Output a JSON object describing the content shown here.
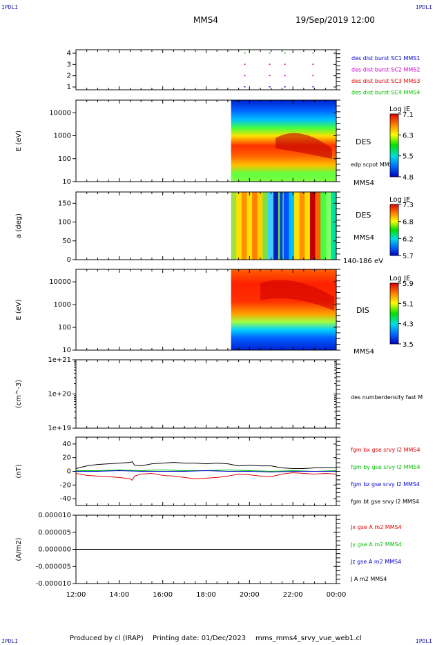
{
  "corners": {
    "tl": "IPDLI",
    "tr": "IPDLI",
    "bl": "IPDLI",
    "br": "IPDLI"
  },
  "header": {
    "spacecraft": "MMS4",
    "datetime": "19/Sep/2019 12:00"
  },
  "footer": {
    "produced": "Produced by cl (IRAP)",
    "printing": "Printing date: 01/Dec/2023",
    "file": "mms_mms4_srvy_vue_web1.cl"
  },
  "colors": {
    "red": "#e00000",
    "green": "#00c000",
    "blue": "#0000d0",
    "magenta": "#d000d0",
    "black": "#000000"
  },
  "chart_data": [
    {
      "type": "scatter",
      "title": "burst availability",
      "yticks": [
        "1",
        "2",
        "3",
        "4"
      ],
      "legend": [
        {
          "label": "des dist burst SC1 MMS1",
          "color": "#0000d0"
        },
        {
          "label": "des dist burst SC2 MMS2",
          "color": "#d000d0"
        },
        {
          "label": "des dist burst SC3 MMS3",
          "color": "#e00000"
        },
        {
          "label": "des dist burst SC4 MMS4",
          "color": "#00c000"
        }
      ],
      "bursts": [
        {
          "row": 1,
          "t": [
            19.75,
            20.9,
            21.6,
            22.9
          ]
        },
        {
          "row": 2,
          "t": [
            19.75,
            20.9,
            21.6,
            22.9
          ]
        },
        {
          "row": 3,
          "t": [
            19.75,
            20.9,
            21.6,
            22.9
          ]
        },
        {
          "row": 4,
          "t": [
            19.75,
            20.9,
            21.6,
            22.9
          ]
        }
      ]
    },
    {
      "type": "heatmap",
      "ylabel": "E (eV)",
      "yscale": "log",
      "yticks": [
        "10",
        "100",
        "1000",
        "10000"
      ],
      "label": "DES",
      "annotation": "edp scpot MMS4",
      "bottom_label": "MMS4",
      "colorbar": {
        "title": "Log JE",
        "ticks": [
          "7.1",
          "6.3",
          "5.5",
          "4.8"
        ],
        "range": [
          4.8,
          7.1
        ]
      },
      "data_start": 19.15
    },
    {
      "type": "heatmap",
      "ylabel": "a (deg)",
      "yticks": [
        "0",
        "50",
        "100",
        "150"
      ],
      "ylim": [
        0,
        180
      ],
      "label": "DES",
      "label2": "MMS4",
      "bottom_label": "140-186 eV",
      "colorbar": {
        "title": "Log JE",
        "ticks": [
          "7.3",
          "6.8",
          "6.2",
          "5.7"
        ],
        "range": [
          5.7,
          7.3
        ]
      },
      "data_start": 19.15
    },
    {
      "type": "heatmap",
      "ylabel": "E (eV)",
      "yscale": "log",
      "yticks": [
        "10",
        "100",
        "1000",
        "10000"
      ],
      "label": "DIS",
      "bottom_label": "MMS4",
      "colorbar": {
        "title": "Log JE",
        "ticks": [
          "5.9",
          "5.1",
          "4.3",
          "3.5"
        ],
        "range": [
          3.5,
          5.9
        ]
      },
      "data_start": 19.15
    },
    {
      "type": "line",
      "ylabel": "(cm^-3)",
      "yscale": "log",
      "yticks": [
        "1e+19",
        "1e+20",
        "1e+21"
      ],
      "legend": [
        {
          "label": "des numberdensity fast M",
          "color": "#000000"
        }
      ],
      "series": []
    },
    {
      "type": "line",
      "ylabel": "(nT)",
      "ylim": [
        -50,
        50
      ],
      "yticks": [
        "-40",
        "-20",
        "0",
        "20",
        "40"
      ],
      "legend": [
        {
          "label": "fgm bx gse srvy l2 MMS4",
          "color": "#e00000"
        },
        {
          "label": "fgm by gse srvy l2 MMS4",
          "color": "#00c000"
        },
        {
          "label": "fgm bz gse srvy l2 MMS4",
          "color": "#0000d0"
        },
        {
          "label": "fgm bt gse srvy l2 MMS4",
          "color": "#000000"
        }
      ],
      "series": [
        {
          "name": "fgm bx gse srvy l2 MMS4",
          "color": "#e00000",
          "x": [
            12.0,
            12.5,
            13.0,
            13.5,
            14.0,
            14.5,
            14.6,
            14.7,
            15.0,
            15.5,
            16.0,
            16.5,
            17.0,
            17.5,
            18.0,
            18.5,
            19.0,
            19.5,
            20.0,
            20.5,
            21.0,
            21.5,
            22.0,
            22.5,
            23.0,
            23.5,
            24.0
          ],
          "y": [
            -3,
            -6,
            -7,
            -8,
            -9,
            -11,
            -13,
            -7,
            -4,
            -3,
            -6,
            -7,
            -9,
            -11,
            -10,
            -9,
            -7,
            -4,
            -5,
            -7,
            -8,
            -4,
            -2,
            -3,
            -4,
            -3,
            -4
          ]
        },
        {
          "name": "fgm by gse srvy l2 MMS4",
          "color": "#00c000",
          "x": [
            12.0,
            13.0,
            14.0,
            15.0,
            16.0,
            17.0,
            18.0,
            19.0,
            20.0,
            21.0,
            22.0,
            23.0,
            24.0
          ],
          "y": [
            1,
            1,
            2,
            1,
            2,
            1,
            1,
            2,
            1,
            0,
            1,
            0,
            1
          ]
        },
        {
          "name": "fgm bz gse srvy l2 MMS4",
          "color": "#0000d0",
          "x": [
            12.0,
            13.0,
            14.0,
            15.0,
            16.0,
            17.0,
            18.0,
            19.0,
            20.0,
            21.0,
            22.0,
            23.0,
            24.0
          ],
          "y": [
            0,
            0,
            1,
            0,
            0,
            0,
            1,
            0,
            0,
            -1,
            0,
            0,
            0
          ]
        },
        {
          "name": "fgm bt gse srvy l2 MMS4",
          "color": "#000000",
          "x": [
            12.0,
            12.5,
            13.0,
            13.5,
            14.0,
            14.5,
            14.6,
            14.7,
            15.0,
            15.5,
            16.0,
            16.5,
            17.0,
            17.5,
            18.0,
            18.5,
            19.0,
            19.5,
            20.0,
            20.5,
            21.0,
            21.5,
            22.0,
            22.5,
            23.0,
            23.5,
            24.0
          ],
          "y": [
            4,
            8,
            10,
            11,
            12,
            13,
            14,
            9,
            8,
            11,
            12,
            13,
            12,
            12,
            11,
            12,
            11,
            8,
            9,
            8,
            8,
            5,
            4,
            4,
            5,
            5,
            5
          ]
        }
      ]
    },
    {
      "type": "line",
      "ylabel": "(A/m2)",
      "ylim": [
        -1e-05,
        1e-05
      ],
      "yticks": [
        "-0.000010",
        "-0.000005",
        "0.000000",
        "0.000005",
        "0.000010"
      ],
      "legend": [
        {
          "label": "Jx gse A m2 MMS4",
          "color": "#e00000"
        },
        {
          "label": "Jy gse A m2 MMS4",
          "color": "#00c000"
        },
        {
          "label": "Jz gse A m2 MMS4",
          "color": "#0000d0"
        },
        {
          "label": "J A m2 MMS4",
          "color": "#000000"
        }
      ],
      "series": [
        {
          "name": "J A m2 MMS4",
          "color": "#000000",
          "x": [
            12.0,
            24.0
          ],
          "y": [
            0.0,
            0.0
          ]
        }
      ]
    }
  ],
  "xaxis": {
    "ticks": [
      "12:00",
      "14:00",
      "16:00",
      "18:00",
      "20:00",
      "22:00",
      "00:00"
    ],
    "range": [
      12,
      24
    ]
  }
}
